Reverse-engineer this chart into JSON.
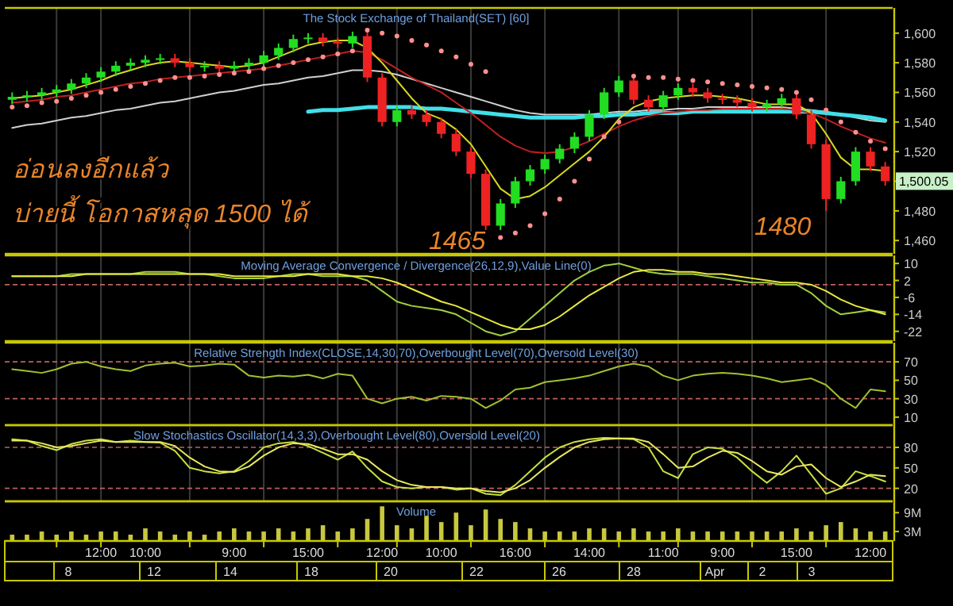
{
  "chart_data": [
    {
      "type": "candlestick",
      "title": "The Stock Exchange of Thailand(SET) [60]",
      "categories": [
        null,
        null,
        null,
        null,
        null,
        null,
        null,
        null,
        null,
        null,
        null,
        null,
        null,
        null,
        null,
        null,
        null,
        null,
        null,
        null,
        null,
        null,
        null,
        null,
        null,
        null,
        null,
        null,
        null,
        null,
        null,
        null,
        null,
        null,
        null,
        null,
        null,
        null,
        null,
        null,
        null,
        null,
        null,
        null,
        null,
        null,
        null,
        null,
        null,
        null,
        null,
        null,
        null,
        null,
        null,
        null,
        null,
        null,
        null,
        null
      ],
      "ohlc": [
        [
          1555,
          1560,
          1552,
          1557
        ],
        [
          1557,
          1561,
          1554,
          1558
        ],
        [
          1558,
          1563,
          1555,
          1560
        ],
        [
          1560,
          1565,
          1557,
          1562
        ],
        [
          1562,
          1569,
          1559,
          1566
        ],
        [
          1566,
          1573,
          1563,
          1570
        ],
        [
          1570,
          1577,
          1567,
          1574
        ],
        [
          1574,
          1581,
          1571,
          1578
        ],
        [
          1578,
          1583,
          1575,
          1580
        ],
        [
          1580,
          1585,
          1577,
          1582
        ],
        [
          1582,
          1586,
          1579,
          1583
        ],
        [
          1583,
          1586,
          1577,
          1580
        ],
        [
          1580,
          1583,
          1574,
          1577
        ],
        [
          1577,
          1581,
          1574,
          1578
        ],
        [
          1578,
          1581,
          1573,
          1576
        ],
        [
          1576,
          1581,
          1573,
          1578
        ],
        [
          1578,
          1583,
          1575,
          1580
        ],
        [
          1580,
          1588,
          1577,
          1585
        ],
        [
          1585,
          1593,
          1582,
          1590
        ],
        [
          1590,
          1599,
          1587,
          1596
        ],
        [
          1596,
          1600,
          1593,
          1597
        ],
        [
          1597,
          1600,
          1591,
          1594
        ],
        [
          1594,
          1597,
          1590,
          1593
        ],
        [
          1593,
          1601,
          1590,
          1598
        ],
        [
          1598,
          1601,
          1567,
          1570
        ],
        [
          1570,
          1573,
          1537,
          1540
        ],
        [
          1540,
          1551,
          1537,
          1548
        ],
        [
          1548,
          1551,
          1542,
          1545
        ],
        [
          1545,
          1548,
          1537,
          1540
        ],
        [
          1540,
          1543,
          1529,
          1532
        ],
        [
          1532,
          1535,
          1517,
          1520
        ],
        [
          1520,
          1523,
          1502,
          1505
        ],
        [
          1505,
          1508,
          1465,
          1470
        ],
        [
          1470,
          1488,
          1467,
          1485
        ],
        [
          1485,
          1503,
          1482,
          1500
        ],
        [
          1500,
          1511,
          1497,
          1508
        ],
        [
          1508,
          1518,
          1505,
          1515
        ],
        [
          1515,
          1525,
          1512,
          1522
        ],
        [
          1522,
          1533,
          1519,
          1530
        ],
        [
          1530,
          1548,
          1527,
          1545
        ],
        [
          1545,
          1563,
          1542,
          1560
        ],
        [
          1560,
          1571,
          1557,
          1568
        ],
        [
          1568,
          1571,
          1552,
          1555
        ],
        [
          1555,
          1558,
          1547,
          1550
        ],
        [
          1550,
          1561,
          1547,
          1558
        ],
        [
          1558,
          1566,
          1555,
          1563
        ],
        [
          1563,
          1566,
          1557,
          1560
        ],
        [
          1560,
          1563,
          1553,
          1556
        ],
        [
          1556,
          1559,
          1552,
          1555
        ],
        [
          1555,
          1558,
          1550,
          1553
        ],
        [
          1553,
          1556,
          1547,
          1550
        ],
        [
          1550,
          1555,
          1547,
          1552
        ],
        [
          1552,
          1559,
          1549,
          1556
        ],
        [
          1556,
          1559,
          1542,
          1545
        ],
        [
          1545,
          1548,
          1522,
          1525
        ],
        [
          1525,
          1528,
          1480,
          1488
        ],
        [
          1488,
          1503,
          1485,
          1500
        ],
        [
          1500,
          1523,
          1497,
          1520
        ],
        [
          1520,
          1523,
          1507,
          1510
        ],
        [
          1510,
          1513,
          1497,
          1500.05
        ]
      ],
      "colors": [
        "#22dd22",
        "#22dd22",
        "#22dd22",
        "#22dd22",
        "#22dd22",
        "#22dd22",
        "#22dd22",
        "#22dd22",
        "#22dd22",
        "#22dd22",
        "#22dd22",
        "#ee2222",
        "#ee2222",
        "#22dd22",
        "#ee2222",
        "#22dd22",
        "#22dd22",
        "#22dd22",
        "#22dd22",
        "#22dd22",
        "#22dd22",
        "#ee2222",
        "#ee2222",
        "#22dd22",
        "#ee2222",
        "#ee2222",
        "#22dd22",
        "#ee2222",
        "#ee2222",
        "#ee2222",
        "#ee2222",
        "#ee2222",
        "#ee2222",
        "#22dd22",
        "#22dd22",
        "#22dd22",
        "#22dd22",
        "#22dd22",
        "#22dd22",
        "#22dd22",
        "#22dd22",
        "#22dd22",
        "#ee2222",
        "#ee2222",
        "#22dd22",
        "#22dd22",
        "#ee2222",
        "#ee2222",
        "#ee2222",
        "#ee2222",
        "#ee2222",
        "#22dd22",
        "#22dd22",
        "#ee2222",
        "#ee2222",
        "#ee2222",
        "#22dd22",
        "#22dd22",
        "#ee2222",
        "#ee2222"
      ],
      "series": [
        {
          "type": "line",
          "color": "#d0d0d0",
          "values": [
            1536,
            1538,
            1539,
            1541,
            1543,
            1544,
            1546,
            1548,
            1549,
            1551,
            1553,
            1554,
            1556,
            1558,
            1560,
            1561,
            1563,
            1565,
            1566,
            1568,
            1570,
            1571,
            1573,
            1575,
            1575,
            1574,
            1572,
            1569,
            1566,
            1563,
            1560,
            1557,
            1554,
            1551,
            1548,
            1546,
            1545,
            1545,
            1545,
            1545,
            1546,
            1547,
            1547,
            1548,
            1548,
            1549,
            1549,
            1550,
            1550,
            1550,
            1550,
            1550,
            1550,
            1549,
            1548,
            1547,
            1545,
            1543,
            1541,
            1540
          ]
        },
        {
          "type": "line",
          "color": "#40e0e8",
          "values": [
            null,
            null,
            null,
            null,
            null,
            null,
            null,
            null,
            null,
            null,
            null,
            null,
            null,
            null,
            null,
            null,
            null,
            null,
            null,
            null,
            1547,
            1548,
            1548,
            1549,
            1550,
            1550,
            1550,
            1550,
            1549,
            1549,
            1548,
            1547,
            1546,
            1545,
            1544,
            1543,
            1543,
            1543,
            1543,
            1544,
            1544,
            1545,
            1545,
            1546,
            1546,
            1546,
            1547,
            1547,
            1547,
            1547,
            1547,
            1547,
            1547,
            1547,
            1547,
            1546,
            1545,
            1544,
            1543,
            1541
          ]
        },
        {
          "type": "line",
          "color": "#c02020",
          "values": [
            1553,
            1554,
            1555,
            1557,
            1558,
            1560,
            1562,
            1564,
            1566,
            1567,
            1569,
            1570,
            1571,
            1572,
            1573,
            1574,
            1575,
            1576,
            1578,
            1580,
            1582,
            1584,
            1586,
            1588,
            1587,
            1582,
            1576,
            1570,
            1565,
            1560,
            1553,
            1546,
            1538,
            1530,
            1524,
            1520,
            1519,
            1520,
            1523,
            1527,
            1532,
            1537,
            1541,
            1544,
            1546,
            1547,
            1548,
            1548,
            1549,
            1549,
            1549,
            1549,
            1549,
            1548,
            1546,
            1542,
            1537,
            1533,
            1529,
            1526
          ]
        },
        {
          "type": "line",
          "color": "#d8d820",
          "values": [
            1556,
            1557,
            1558,
            1560,
            1562,
            1565,
            1568,
            1572,
            1575,
            1578,
            1580,
            1581,
            1580,
            1579,
            1578,
            1577,
            1578,
            1580,
            1584,
            1588,
            1592,
            1594,
            1595,
            1595,
            1590,
            1580,
            1568,
            1556,
            1546,
            1542,
            1535,
            1525,
            1510,
            1495,
            1488,
            1490,
            1496,
            1504,
            1512,
            1520,
            1530,
            1542,
            1550,
            1554,
            1556,
            1557,
            1558,
            1558,
            1557,
            1556,
            1554,
            1552,
            1552,
            1552,
            1546,
            1532,
            1516,
            1508,
            1508,
            1507
          ]
        },
        {
          "type": "scatter",
          "color": "#ff9090",
          "marker": "circle",
          "values": [
            1550,
            1551,
            1553,
            1554,
            1556,
            1558,
            1560,
            1562,
            1564,
            1566,
            1568,
            1570,
            1570,
            1571,
            1572,
            1573,
            1574,
            1576,
            1578,
            1580,
            1582,
            1584,
            1586,
            1588,
            1602,
            1600,
            1598,
            1595,
            1592,
            1588,
            1584,
            1579,
            1574,
            1462,
            1465,
            1470,
            1478,
            1488,
            1500,
            1515,
            1530,
            1540,
            1571,
            1570,
            1570,
            1569,
            1568,
            1567,
            1566,
            1565,
            1564,
            1563,
            1562,
            1560,
            1555,
            1548,
            1540,
            1533,
            1527,
            1522
          ]
        }
      ],
      "ylim": [
        1451,
        1617
      ],
      "yticks": [
        {
          "value": 1460,
          "label": "1,460"
        },
        {
          "value": 1480,
          "label": "1,480"
        },
        {
          "value": 1500,
          "label": null
        },
        {
          "value": 1520,
          "label": "1,520"
        },
        {
          "value": 1540,
          "label": "1,540"
        },
        {
          "value": 1560,
          "label": "1,560"
        },
        {
          "value": 1580,
          "label": "1,580"
        },
        {
          "value": 1600,
          "label": "1,600"
        }
      ],
      "annotations": [
        "อ่อนลงอีกแล้ว",
        "บ่ายนี้ โอกาสหลุด 1500 ได้",
        "1465",
        "1480",
        "1,500.05"
      ],
      "grid": "x",
      "tick_labels": "y"
    },
    {
      "type": "line",
      "title": "Moving Average Convergence / Divergence(26,12,9),Value Line(0)",
      "categories": [
        null,
        null,
        null,
        null,
        null,
        null,
        null,
        null,
        null,
        null,
        null,
        null,
        null,
        null,
        null,
        null,
        null,
        null,
        null,
        null,
        null,
        null,
        null,
        null,
        null,
        null,
        null,
        null,
        null,
        null,
        null,
        null,
        null,
        null,
        null,
        null,
        null,
        null,
        null,
        null,
        null,
        null,
        null,
        null,
        null,
        null,
        null,
        null,
        null,
        null,
        null,
        null,
        null,
        null,
        null,
        null,
        null,
        null,
        null,
        null
      ],
      "series": [
        {
          "color": "#a0d040",
          "values": [
            4,
            4,
            4,
            4,
            5,
            5,
            5,
            5,
            5,
            6,
            6,
            6,
            5,
            5,
            4,
            3,
            3,
            3,
            4,
            5,
            5,
            4,
            4,
            4,
            2,
            -3,
            -8,
            -10,
            -11,
            -12,
            -14,
            -18,
            -22,
            -24,
            -22,
            -16,
            -10,
            -4,
            2,
            6,
            9,
            10,
            8,
            6,
            5,
            5,
            5,
            4,
            3,
            2,
            1,
            1,
            0,
            0,
            -4,
            -10,
            -14,
            -13,
            -12,
            -13
          ]
        },
        {
          "color": "#e8e840",
          "values": [
            4,
            4,
            4,
            4,
            4,
            5,
            5,
            5,
            5,
            5,
            5,
            5,
            5,
            5,
            5,
            4,
            4,
            4,
            4,
            4,
            5,
            5,
            5,
            4,
            4,
            3,
            1,
            -2,
            -5,
            -8,
            -10,
            -13,
            -16,
            -19,
            -21,
            -21,
            -19,
            -15,
            -10,
            -5,
            -1,
            3,
            6,
            7,
            7,
            6,
            6,
            5,
            5,
            4,
            3,
            2,
            1,
            1,
            0,
            -3,
            -7,
            -10,
            -12,
            -14
          ]
        }
      ],
      "ylim": [
        -26.6,
        13.8
      ],
      "yticks": [
        10,
        2,
        -6,
        -14,
        -22
      ],
      "ref_lines": [
        {
          "axis": "y",
          "value": 0,
          "color": "#c06060",
          "line_style": "dashed"
        }
      ],
      "grid": "x",
      "tick_labels": "y"
    },
    {
      "type": "line",
      "title": "Relative Strength Index(CLOSE,14,30,70),Overbought Level(70),Oversold Level(30)",
      "categories": [
        null,
        null,
        null,
        null,
        null,
        null,
        null,
        null,
        null,
        null,
        null,
        null,
        null,
        null,
        null,
        null,
        null,
        null,
        null,
        null,
        null,
        null,
        null,
        null,
        null,
        null,
        null,
        null,
        null,
        null,
        null,
        null,
        null,
        null,
        null,
        null,
        null,
        null,
        null,
        null,
        null,
        null,
        null,
        null,
        null,
        null,
        null,
        null,
        null,
        null,
        null,
        null,
        null,
        null,
        null,
        null,
        null,
        null,
        null,
        null
      ],
      "series": [
        {
          "color": "#a0c030",
          "values": [
            62,
            60,
            58,
            62,
            68,
            70,
            65,
            62,
            60,
            66,
            68,
            69,
            65,
            66,
            68,
            67,
            55,
            53,
            55,
            54,
            56,
            52,
            57,
            55,
            30,
            25,
            30,
            32,
            28,
            33,
            32,
            30,
            20,
            28,
            40,
            42,
            48,
            50,
            52,
            55,
            60,
            65,
            68,
            65,
            55,
            50,
            55,
            57,
            58,
            57,
            55,
            52,
            48,
            50,
            52,
            45,
            30,
            20,
            40,
            38
          ]
        }
      ],
      "ylim": [
        1.3,
        90.8
      ],
      "yticks": [
        70,
        50,
        30,
        10
      ],
      "ref_lines": [
        {
          "axis": "y",
          "value": 70,
          "color": "#c06060",
          "line_style": "dashed"
        },
        {
          "axis": "y",
          "value": 30,
          "color": "#c06060",
          "line_style": "dashed"
        }
      ],
      "grid": "x",
      "tick_labels": "y"
    },
    {
      "type": "line",
      "title": "Slow Stochastics Oscillator(14,3,3),Overbought Level(80),Oversold Level(20)",
      "categories": [
        null,
        null,
        null,
        null,
        null,
        null,
        null,
        null,
        null,
        null,
        null,
        null,
        null,
        null,
        null,
        null,
        null,
        null,
        null,
        null,
        null,
        null,
        null,
        null,
        null,
        null,
        null,
        null,
        null,
        null,
        null,
        null,
        null,
        null,
        null,
        null,
        null,
        null,
        null,
        null,
        null,
        null,
        null,
        null,
        null,
        null,
        null,
        null,
        null,
        null,
        null,
        null,
        null,
        null,
        null,
        null,
        null,
        null,
        null,
        null
      ],
      "series": [
        {
          "color": "#c8e040",
          "values": [
            92,
            90,
            82,
            76,
            85,
            90,
            92,
            88,
            90,
            88,
            87,
            75,
            50,
            45,
            42,
            45,
            60,
            80,
            86,
            88,
            82,
            72,
            62,
            74,
            50,
            30,
            22,
            20,
            22,
            22,
            18,
            20,
            12,
            10,
            25,
            45,
            65,
            80,
            88,
            92,
            94,
            93,
            92,
            80,
            45,
            35,
            70,
            80,
            78,
            65,
            45,
            28,
            45,
            68,
            40,
            12,
            20,
            45,
            38,
            30
          ]
        },
        {
          "color": "#e8e860",
          "values": [
            90,
            90,
            86,
            80,
            82,
            86,
            90,
            88,
            88,
            88,
            88,
            82,
            65,
            52,
            45,
            44,
            52,
            68,
            80,
            86,
            85,
            78,
            70,
            70,
            62,
            45,
            32,
            25,
            22,
            22,
            20,
            20,
            16,
            14,
            20,
            32,
            50,
            66,
            80,
            88,
            92,
            93,
            93,
            88,
            70,
            50,
            52,
            65,
            75,
            72,
            60,
            45,
            40,
            52,
            55,
            35,
            22,
            30,
            40,
            38
          ]
        }
      ],
      "ylim": [
        1,
        112.6
      ],
      "yticks": [
        80,
        50,
        20
      ],
      "ref_lines": [
        {
          "axis": "y",
          "value": 80,
          "color": "#c06060",
          "line_style": "dashed"
        },
        {
          "axis": "y",
          "value": 20,
          "color": "#c06060",
          "line_style": "dashed"
        }
      ],
      "grid": "x",
      "tick_labels": "y"
    },
    {
      "type": "bar",
      "title": "Volume",
      "categories": [
        null,
        null,
        null,
        null,
        null,
        null,
        "12:00",
        null,
        null,
        "10:00",
        null,
        null,
        null,
        null,
        null,
        "9:00",
        null,
        null,
        null,
        null,
        "15:00",
        null,
        null,
        null,
        null,
        "12:00",
        null,
        null,
        null,
        "10:00",
        null,
        null,
        null,
        null,
        "16:00",
        null,
        null,
        null,
        null,
        "14:00",
        null,
        null,
        null,
        null,
        "11:00",
        null,
        null,
        null,
        "9:00",
        null,
        null,
        null,
        null,
        "15:00",
        null,
        null,
        null,
        null,
        "12:00",
        null
      ],
      "values": [
        2,
        2,
        3,
        2,
        3,
        2,
        3,
        3,
        2,
        4,
        3,
        2,
        3,
        2,
        3,
        4,
        3,
        3,
        4,
        3,
        4,
        5,
        3,
        4,
        7,
        11,
        5,
        4,
        8,
        6,
        9,
        5,
        10,
        7,
        6,
        4,
        3,
        3,
        3,
        4,
        4,
        3,
        4,
        3,
        3,
        4,
        3,
        3,
        3,
        3,
        3,
        3,
        3,
        4,
        3,
        5,
        6,
        4,
        3,
        3
      ],
      "color": "#c8c840",
      "ylim": [
        0,
        12.6
      ],
      "yticks": [
        {
          "value": 9,
          "label": "9M"
        },
        {
          "value": 3,
          "label": "3M"
        }
      ],
      "annotations": [
        "8",
        "12",
        "14",
        "18",
        "20",
        "22",
        "26",
        "28",
        "Apr",
        "2",
        "3"
      ],
      "grid": false
    }
  ]
}
